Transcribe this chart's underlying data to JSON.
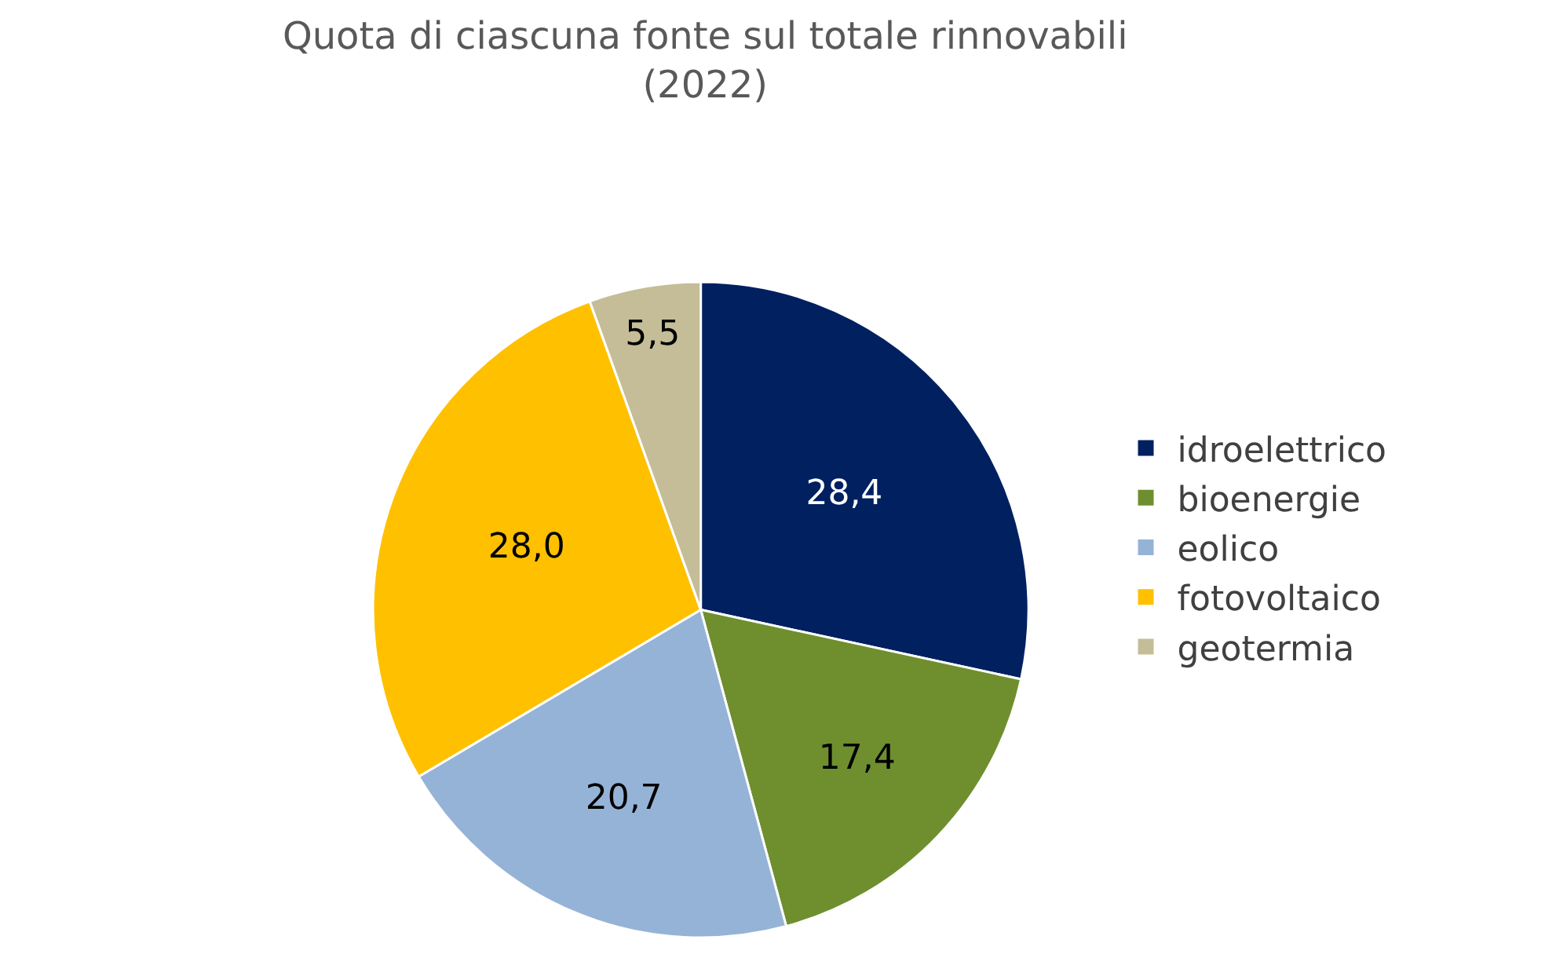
{
  "chart_data": {
    "type": "pie",
    "title": "Quota di ciascuna fonte sul totale rinnovabili\n(2022)",
    "categories": [
      "idroelettrico",
      "bioenergie",
      "eolico",
      "fotovoltaico",
      "geotermia"
    ],
    "values": [
      28.4,
      17.4,
      20.7,
      28.0,
      5.5
    ],
    "value_labels": [
      "28,4",
      "17,4",
      "20,7",
      "28,0",
      "5,5"
    ],
    "colors": [
      "#002060",
      "#6f8f2f",
      "#95b3d7",
      "#ffc000",
      "#c4bd97"
    ],
    "legend": "right"
  }
}
